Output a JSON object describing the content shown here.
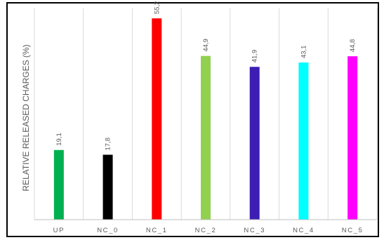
{
  "chart_data": {
    "type": "bar",
    "title": "",
    "xlabel": "",
    "ylabel": "RELATIVE RELEASED CHARGES (%)",
    "categories": [
      "UP",
      "NC_0",
      "NC_1",
      "NC_2",
      "NC_3",
      "NC_4",
      "NC_5"
    ],
    "values": [
      19.1,
      17.8,
      55.2,
      44.9,
      41.9,
      43.1,
      44.8
    ],
    "value_labels": [
      "19,1",
      "17,8",
      "55,2",
      "44,9",
      "41,9",
      "43,1",
      "44,8"
    ],
    "bar_colors": [
      "#00b050",
      "#000000",
      "#ff0000",
      "#92d050",
      "#3c1eb4",
      "#00ffff",
      "#ff00ff"
    ],
    "ylim": [
      0,
      56
    ],
    "grid": "vertical",
    "legend": "none",
    "colors": {
      "grid": "#d9d9d9",
      "axis": "#bfbfbf",
      "text": "#595959",
      "frame": "#000000"
    }
  }
}
